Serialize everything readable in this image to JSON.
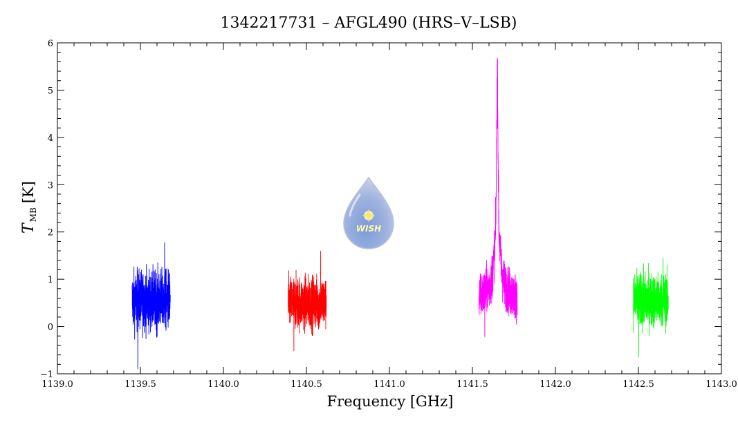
{
  "chart_data": {
    "type": "line",
    "title": "1342217731 – AFGL490 (HRS–V–LSB)",
    "xlabel": "Frequency [GHz]",
    "ylabel": {
      "symbol": "T",
      "subscript": "MB",
      "unit": "[K]"
    },
    "xlim": [
      1139.0,
      1143.0
    ],
    "ylim": [
      -1,
      6
    ],
    "x_ticks": [
      "1139.0",
      "1139.5",
      "1140.0",
      "1140.5",
      "1141.0",
      "1141.5",
      "1142.0",
      "1142.5",
      "1143.0"
    ],
    "y_ticks": [
      "−1",
      "0",
      "1",
      "2",
      "3",
      "4",
      "5",
      "6"
    ],
    "grid": false,
    "series": [
      {
        "color": "#0000ff",
        "x_range": [
          1139.45,
          1139.68
        ],
        "baseline": 0.55,
        "noise": 0.45,
        "min": -0.9,
        "max": 1.78
      },
      {
        "color": "#ff0000",
        "x_range": [
          1140.39,
          1140.62
        ],
        "baseline": 0.5,
        "noise": 0.4,
        "min": -0.52,
        "max": 1.6
      },
      {
        "color": "#ff00ff",
        "x_range": [
          1141.54,
          1141.77
        ],
        "baseline": 0.6,
        "noise": 0.35,
        "min": -0.22,
        "max": 5.68,
        "peak_x": 1141.65
      },
      {
        "color": "#00ff00",
        "x_range": [
          1142.47,
          1142.68
        ],
        "baseline": 0.55,
        "noise": 0.4,
        "min": -0.65,
        "max": 1.45
      }
    ]
  },
  "logo": {
    "text": "WISH"
  }
}
